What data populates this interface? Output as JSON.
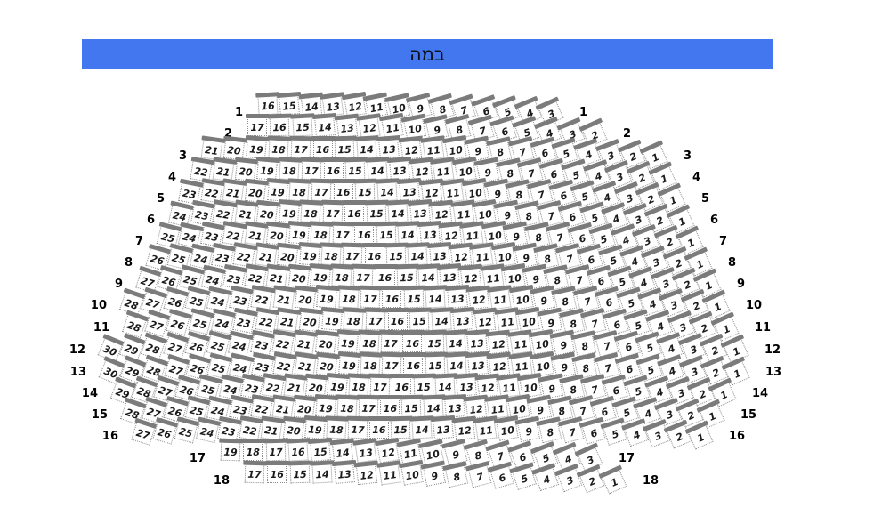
{
  "stage": {
    "label": "במה",
    "color": "#4377f0",
    "text_color": "#0d1117"
  },
  "seat_style": {
    "back_bar_color": "#7b7b7b",
    "outline_color": "#8f8f8f",
    "number_color": "#1a1a1a"
  },
  "rows": [
    {
      "label": "1",
      "from": 16,
      "to": 3
    },
    {
      "label": "2",
      "from": 17,
      "to": 2
    },
    {
      "label": "3",
      "from": 21,
      "to": 1
    },
    {
      "label": "4",
      "from": 22,
      "to": 1
    },
    {
      "label": "5",
      "from": 23,
      "to": 1
    },
    {
      "label": "6",
      "from": 24,
      "to": 1
    },
    {
      "label": "7",
      "from": 25,
      "to": 1
    },
    {
      "label": "8",
      "from": 26,
      "to": 1
    },
    {
      "label": "9",
      "from": 27,
      "to": 1
    },
    {
      "label": "10",
      "from": 28,
      "to": 1
    },
    {
      "label": "11",
      "from": 28,
      "to": 1
    },
    {
      "label": "12",
      "from": 30,
      "to": 1
    },
    {
      "label": "13",
      "from": 30,
      "to": 1
    },
    {
      "label": "14",
      "from": 29,
      "to": 1
    },
    {
      "label": "15",
      "from": 28,
      "to": 1
    },
    {
      "label": "16",
      "from": 27,
      "to": 1
    },
    {
      "label": "17",
      "from": 19,
      "to": 3
    },
    {
      "label": "18",
      "from": 17,
      "to": 1
    }
  ]
}
